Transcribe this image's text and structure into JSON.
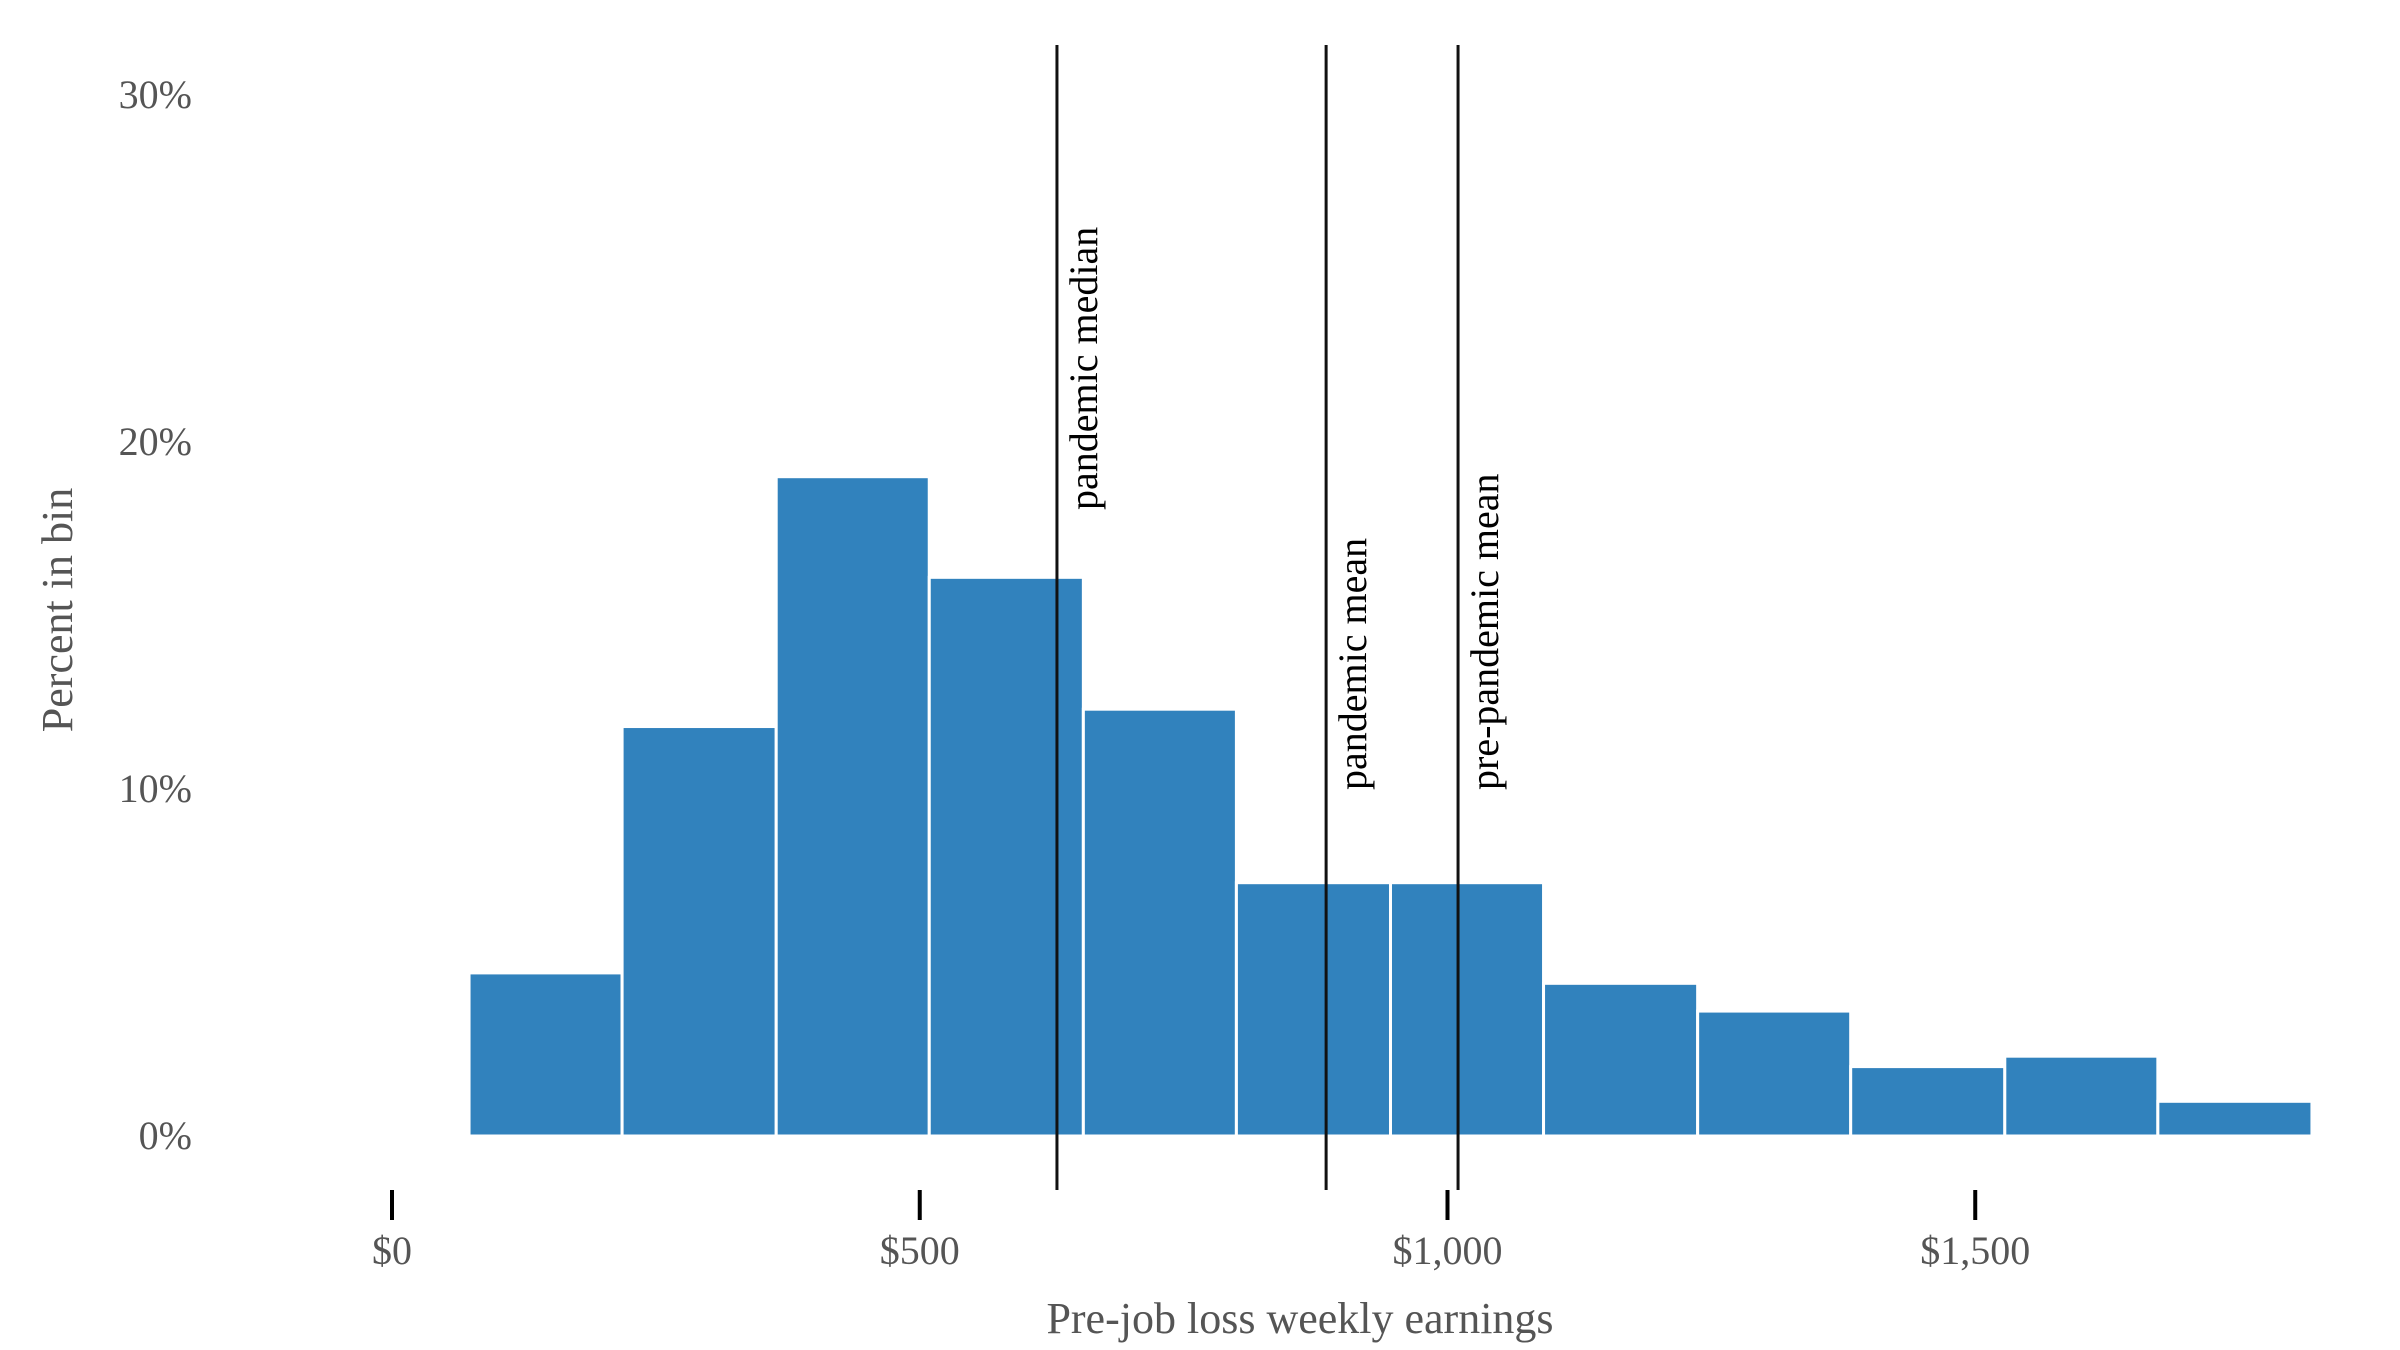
{
  "chart_data": {
    "type": "bar",
    "xlabel": "Pre-job loss weekly earnings",
    "ylabel": "Percent in bin",
    "xlim": [
      0,
      1820
    ],
    "ylim": [
      0,
      30
    ],
    "x_ticks": [
      {
        "value": 0,
        "label": "$0"
      },
      {
        "value": 500,
        "label": "$500"
      },
      {
        "value": 1000,
        "label": "$1,000"
      },
      {
        "value": 1500,
        "label": "$1,500"
      }
    ],
    "y_ticks": [
      {
        "value": 0,
        "label": "0%"
      },
      {
        "value": 10,
        "label": "10%"
      },
      {
        "value": 20,
        "label": "20%"
      },
      {
        "value": 30,
        "label": "30%"
      }
    ],
    "bin_edges": [
      73,
      218,
      364,
      509,
      655,
      800,
      946,
      1091,
      1237,
      1382,
      1528,
      1673,
      1819
    ],
    "values": [
      4.7,
      11.8,
      19.0,
      16.1,
      12.3,
      7.3,
      7.3,
      4.4,
      3.6,
      2.0,
      2.3,
      1.0
    ],
    "bar_color": "#3182bd",
    "reference_lines": [
      {
        "value": 630,
        "label": "pandemic median"
      },
      {
        "value": 885,
        "label": "pandemic mean"
      },
      {
        "value": 1010,
        "label": "pre-pandemic mean"
      }
    ],
    "grid": false,
    "legend": "none"
  }
}
